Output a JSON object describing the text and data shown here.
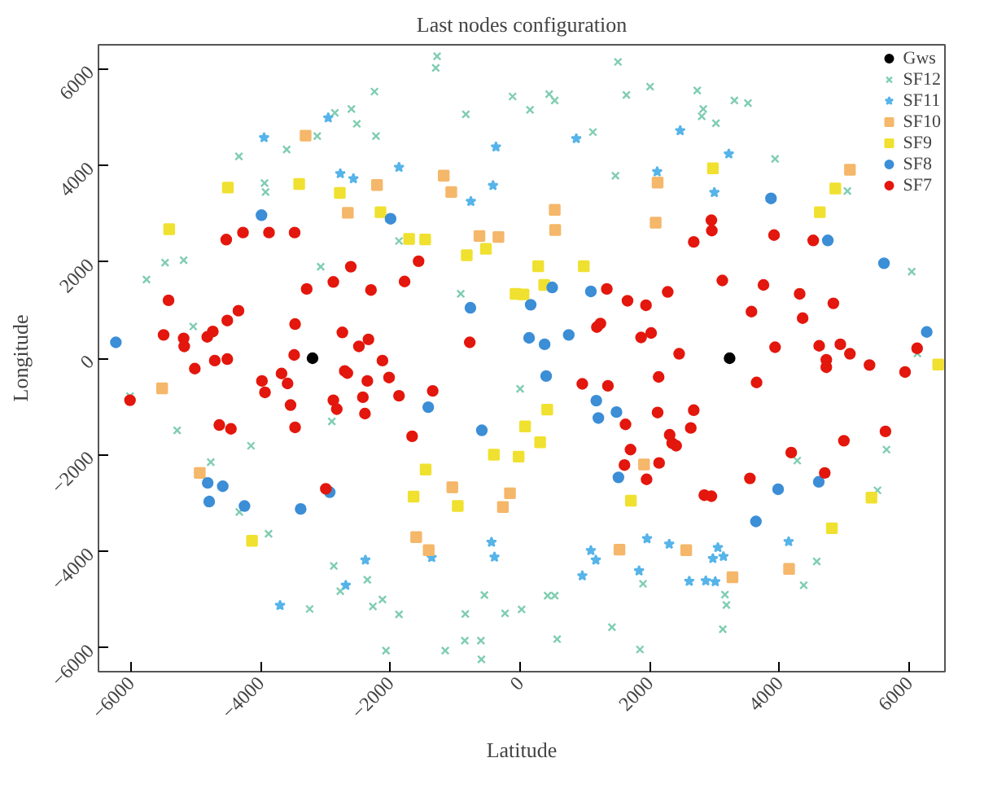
{
  "chart_data": {
    "type": "scatter",
    "title": "Last nodes configuration",
    "xlabel": "Latitude",
    "ylabel": "Longitude",
    "xlim": [
      -6500,
      6550
    ],
    "ylim": [
      -6500,
      6500
    ],
    "xticks": [
      -6000,
      -4000,
      -2000,
      0,
      2000,
      4000,
      6000
    ],
    "yticks": [
      -6000,
      -4000,
      -2000,
      0,
      2000,
      4000,
      6000
    ],
    "grid": false,
    "legend": "top right",
    "series": [
      {
        "name": "Gws",
        "color": "#000000",
        "marker": "circle",
        "x": [
          -3200,
          3230
        ],
        "values": [
          0,
          0
        ]
      },
      {
        "name": "SF12",
        "color": "#7fcdb0",
        "marker": "cross",
        "x": [
          -1280,
          -1300,
          -2245,
          -2856,
          -2601,
          -2517,
          -2222,
          -3128,
          -3599,
          -4335,
          -3940,
          -3924,
          -836,
          -116,
          153,
          -1867,
          -3074,
          -5473,
          -5187,
          -5759,
          -5039,
          -915,
          1509,
          448,
          534,
          1639,
          2004,
          2731,
          2824,
          2800,
          3019,
          3304,
          3513,
          1122,
          1470,
          3931,
          5046,
          6037,
          6125,
          -6014,
          -5287,
          -4769,
          -4149,
          -4328,
          -3878,
          -2903,
          -2872,
          -2355,
          -2772,
          -2269,
          -2122,
          -1867,
          -3244,
          -2067,
          -1154,
          -845,
          -550,
          -852,
          -604,
          -597,
          -232,
          23,
          0,
          4273,
          5649,
          5510,
          4574,
          4372,
          1895,
          3158,
          3181,
          3125,
          425,
          534,
          1416,
          571,
          1848
        ],
        "values": [
          6260,
          6022,
          5529,
          5089,
          5169,
          4862,
          4606,
          4606,
          4329,
          4185,
          3631,
          3446,
          5059,
          5428,
          5151,
          2431,
          1898,
          1982,
          2031,
          1631,
          658,
          1335,
          6145,
          5477,
          5345,
          5459,
          5631,
          5551,
          5169,
          5016,
          4874,
          5345,
          5292,
          4689,
          3785,
          4135,
          3468,
          1797,
          98,
          -788,
          -1495,
          -2154,
          -1815,
          -3188,
          -3640,
          -1311,
          -4308,
          -4594,
          -4831,
          -5148,
          -5003,
          -5311,
          -5200,
          -6062,
          -6062,
          -5302,
          -4911,
          -5856,
          -5856,
          -6246,
          -5292,
          -5209,
          -634,
          -2123,
          -1895,
          -2739,
          -4215,
          -4708,
          -4677,
          -4902,
          -5117,
          -5619,
          -4923,
          -4923,
          -5579,
          -5825,
          -6040
        ]
      },
      {
        "name": "SF11",
        "color": "#56b4e9",
        "marker": "star",
        "x": [
          -2958,
          -3947,
          -2772,
          -2570,
          -1867,
          -372,
          -418,
          -759,
          866,
          2468,
          3218,
          2113,
          2995,
          -2385,
          -2687,
          -3701,
          -1363,
          -441,
          -395,
          1957,
          2299,
          1091,
          1168,
          1834,
          959,
          3049,
          3135,
          2972,
          2608,
          2863,
          3009,
          4140
        ],
        "values": [
          4985,
          4575,
          3828,
          3723,
          3960,
          4382,
          3582,
          3252,
          4554,
          4720,
          4237,
          3868,
          3437,
          -4185,
          -4708,
          -5126,
          -4132,
          -3815,
          -4123,
          -3742,
          -3855,
          -3988,
          -4185,
          -4409,
          -4511,
          -3926,
          -4111,
          -4154,
          -4625,
          -4616,
          -4634,
          -3803
        ]
      },
      {
        "name": "SF10",
        "color": "#f5b76a",
        "marker": "square",
        "x": [
          -3307,
          -2206,
          -2656,
          -1177,
          -1061,
          -627,
          -334,
          534,
          541,
          2120,
          2090,
          5085,
          -5519,
          -4939,
          -1045,
          -156,
          -265,
          -1602,
          -1409,
          1911,
          1532,
          2561,
          3274,
          4147
        ],
        "values": [
          4616,
          3591,
          3015,
          3785,
          3446,
          2535,
          2514,
          3077,
          2658,
          3643,
          2812,
          3908,
          -625,
          -2378,
          -2677,
          -2800,
          -3086,
          -3711,
          -3979,
          -2203,
          -3969,
          -3979,
          -4542,
          -4369
        ]
      },
      {
        "name": "SF9",
        "color": "#f0e130",
        "marker": "square",
        "x": [
          -4505,
          -3406,
          -2779,
          -2152,
          -5410,
          -1711,
          -1463,
          -822,
          -527,
          -70,
          53,
          279,
          982,
          372,
          2972,
          4860,
          4621,
          77,
          -404,
          -23,
          -1456,
          -1642,
          -961,
          -4133,
          418,
          309,
          1709,
          4807,
          5417,
          6446
        ],
        "values": [
          3539,
          3612,
          3428,
          3028,
          2677,
          2474,
          2462,
          2135,
          2268,
          1335,
          1323,
          1908,
          1908,
          1520,
          3939,
          3520,
          3028,
          -1415,
          -2000,
          -2040,
          -2308,
          -2871,
          -3065,
          -3785,
          -1065,
          -1742,
          -2954,
          -3526,
          -2892,
          -132
        ]
      },
      {
        "name": "SF8",
        "color": "#3c8ed6",
        "marker": "circle",
        "x": [
          -3987,
          -1997,
          -766,
          163,
          139,
          -6232,
          495,
          1091,
          378,
          750,
          3868,
          4744,
          5610,
          6269,
          -1416,
          -590,
          -4816,
          -4584,
          -4793,
          -4249,
          -3383,
          -2935,
          402,
          1175,
          1207,
          1486,
          1516,
          3978,
          4605,
          3636
        ],
        "values": [
          2966,
          2892,
          1046,
          1108,
          422,
          329,
          1468,
          1385,
          289,
          483,
          3314,
          2443,
          1969,
          545,
          -1015,
          -1495,
          -2585,
          -2655,
          -2972,
          -3065,
          -3126,
          -2778,
          -369,
          -880,
          -1240,
          -1117,
          -2471,
          -2717,
          -2563,
          -3385
        ]
      },
      {
        "name": "SF7",
        "color": "#e3170d",
        "marker": "circle",
        "x": [
          -4530,
          -4272,
          -3871,
          -3476,
          -2610,
          -2879,
          -3290,
          -2299,
          -1781,
          -1565,
          -5420,
          -4342,
          -4514,
          -5496,
          -5187,
          -5178,
          -4823,
          -4737,
          -3469,
          -2740,
          -2338,
          -2485,
          -776,
          -3483,
          -6014,
          -5015,
          -4707,
          -4514,
          -3980,
          -3933,
          -3678,
          -3585,
          -3539,
          -3469,
          -4637,
          -4458,
          -2879,
          -2826,
          -2703,
          -2663,
          -2355,
          -2424,
          -2392,
          -2122,
          -2020,
          -1867,
          -1347,
          -1665,
          -2995,
          1337,
          1656,
          1941,
          2276,
          1184,
          1238,
          1865,
          2020,
          2452,
          2949,
          2956,
          2677,
          3915,
          4519,
          3118,
          3752,
          3567,
          4310,
          4356,
          4830,
          3931,
          4611,
          4937,
          5085,
          6121,
          959,
          1354,
          2136,
          3646,
          4721,
          4721,
          5387,
          5935,
          2120,
          2677,
          2631,
          1625,
          2306,
          2345,
          2406,
          1702,
          1609,
          2143,
          1950,
          2840,
          2949,
          3543,
          4180,
          4992,
          5633,
          4697
        ],
        "values": [
          2460,
          2606,
          2606,
          2606,
          1898,
          1582,
          1437,
          1415,
          1591,
          2012,
          1200,
          985,
          782,
          483,
          412,
          246,
          443,
          554,
          708,
          535,
          391,
          246,
          329,
          68,
          -871,
          -215,
          -49,
          -18,
          -471,
          -708,
          -317,
          -523,
          -972,
          -1434,
          -1385,
          -1465,
          -871,
          -1055,
          -265,
          -308,
          -471,
          -809,
          -1148,
          -49,
          -400,
          -778,
          -677,
          -1618,
          -2708,
          1437,
          1191,
          1098,
          1375,
          646,
          720,
          431,
          523,
          92,
          2862,
          2646,
          2412,
          2554,
          2443,
          1612,
          1520,
          966,
          1335,
          831,
          1138,
          228,
          258,
          289,
          92,
          206,
          -532,
          -572,
          -388,
          -502,
          -31,
          -185,
          -142,
          -286,
          -1126,
          -1077,
          -1446,
          -1372,
          -1588,
          -1763,
          -1815,
          -1895,
          -2215,
          -2172,
          -2511,
          -2840,
          -2862,
          -2492,
          -1957,
          -1711,
          -1517,
          -2378
        ]
      }
    ]
  }
}
